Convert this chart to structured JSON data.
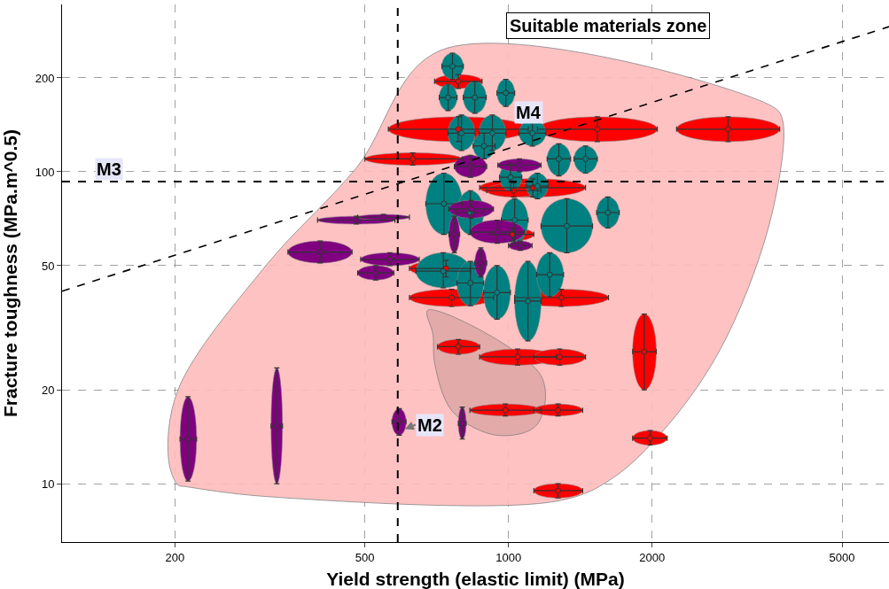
{
  "chart_data": {
    "type": "scatter",
    "xlabel": "Yield strength (elastic limit) (MPa)",
    "ylabel": "Fracture toughness (MPa.m^0.5)",
    "log": "xy",
    "xlim": [
      116,
      6270
    ],
    "ylim": [
      6.5,
      344
    ],
    "xticks": [
      200,
      500,
      1000,
      2000,
      5000
    ],
    "yticks": [
      10,
      20,
      50,
      100,
      200
    ],
    "grid": true,
    "annotations": [
      "Suitable materials zone",
      {
        "text": "M4",
        "x": 1100,
        "y": 155
      }
    ],
    "ref_lines": [
      {
        "axis": "x",
        "value": 586,
        "label": "M2",
        "color": "#000000",
        "line_style": "dashed"
      },
      {
        "axis": "y",
        "value": 93,
        "label": "M3",
        "color": "#000000",
        "line_style": "dashed"
      }
    ],
    "series": [
      {
        "type": "area",
        "color": "#ffbcbc",
        "x": [
          203,
          194,
          203,
          310,
          480,
          720,
          3570,
          3750,
          3570,
          2880,
          2240,
          1650,
          1265,
          310,
          210
        ],
        "values": [
          9.9,
          11.9,
          20,
          50,
          103,
          245,
          162,
          147,
          74,
          30,
          16.5,
          10.4,
          8.8,
          9.1,
          9.8
        ]
      },
      {
        "type": "area",
        "color": "#e0a8a8",
        "x": [
          677,
          695,
          700,
          764,
          946,
          1145,
          1172
        ],
        "values": [
          36,
          30,
          24.4,
          17,
          14.3,
          15.4,
          22.1
        ]
      },
      {
        "color": "#ff0000",
        "marker": "circle",
        "x": [
          785,
          785,
          630,
          1535,
          2885,
          1125,
          740,
          760,
          1290,
          785,
          1045,
          1280,
          985,
          1270,
          1925,
          1980,
          1270,
          1020,
          1025
        ],
        "values": [
          195,
          137,
          110,
          137,
          137,
          89,
          49,
          39.5,
          39.5,
          27.5,
          25.5,
          25.5,
          17.2,
          17.2,
          26.5,
          14,
          9.5,
          63,
          87
        ],
        "xerrors": [
          [
            700,
            880
          ],
          [
            560,
            1100
          ],
          [
            500,
            800
          ],
          [
            1150,
            2050
          ],
          [
            2250,
            3700
          ],
          [
            870,
            1450
          ],
          [
            620,
            880
          ],
          [
            620,
            930
          ],
          [
            1030,
            1620
          ],
          [
            710,
            870
          ],
          [
            870,
            1260
          ],
          [
            1130,
            1450
          ],
          [
            830,
            1170
          ],
          [
            1130,
            1430
          ],
          [
            1820,
            2040
          ],
          [
            1820,
            2150
          ],
          [
            1130,
            1430
          ],
          [
            920,
            1130
          ],
          [
            900,
            1170
          ]
        ],
        "errors": [
          [
            185,
            205
          ],
          [
            125,
            150
          ],
          [
            105,
            115
          ],
          [
            125,
            150
          ],
          [
            125,
            150
          ],
          [
            83,
            95
          ],
          [
            46,
            52
          ],
          [
            37,
            42
          ],
          [
            37,
            42
          ],
          [
            26,
            29
          ],
          [
            24,
            27
          ],
          [
            24,
            27
          ],
          [
            16.5,
            18
          ],
          [
            16.5,
            18
          ],
          [
            20,
            35
          ],
          [
            13.3,
            14.8
          ],
          [
            9,
            10
          ],
          [
            60,
            66
          ],
          [
            83,
            92
          ]
        ]
      },
      {
        "color": "#008080",
        "marker": "circle",
        "x": [
          763,
          747,
          850,
          987,
          797,
          925,
          1122,
          1275,
          1450,
          732,
          832,
          1030,
          1325,
          1615,
          730,
          832,
          946,
          1098,
          1220,
          1010,
          1150,
          889
        ],
        "values": [
          218,
          173,
          173,
          179,
          133,
          133,
          133,
          110,
          110,
          79,
          74,
          70,
          67,
          74,
          48,
          44,
          41,
          38.5,
          46.8,
          96,
          90,
          121
        ],
        "xerrors": [
          [
            725,
            804
          ],
          [
            716,
            780
          ],
          [
            804,
            898
          ],
          [
            946,
            1030
          ],
          [
            747,
            850
          ],
          [
            868,
            987
          ],
          [
            1052,
            1197
          ],
          [
            1205,
            1349
          ],
          [
            1372,
            1535
          ],
          [
            671,
            800
          ],
          [
            780,
            887
          ],
          [
            966,
            1099
          ],
          [
            1170,
            1500
          ],
          [
            1530,
            1706
          ],
          [
            640,
            832
          ],
          [
            780,
            887
          ],
          [
            887,
            1009
          ],
          [
            1030,
            1170
          ],
          [
            1145,
            1304
          ],
          [
            958,
            1066
          ],
          [
            1090,
            1210
          ],
          [
            843,
            937
          ]
        ],
        "errors": [
          [
            198,
            240
          ],
          [
            157,
            191
          ],
          [
            154,
            195
          ],
          [
            162,
            198
          ],
          [
            117,
            152
          ],
          [
            117,
            152
          ],
          [
            121,
            147
          ],
          [
            97,
            123
          ],
          [
            99,
            121
          ],
          [
            63,
            99
          ],
          [
            63,
            87
          ],
          [
            59,
            82
          ],
          [
            55,
            82
          ],
          [
            66,
            83
          ],
          [
            42.5,
            55
          ],
          [
            37.2,
            51.6
          ],
          [
            33.7,
            50
          ],
          [
            28.7,
            51.6
          ],
          [
            39.8,
            55
          ],
          [
            87,
            106
          ],
          [
            82,
            99
          ],
          [
            110,
            133
          ]
        ]
      },
      {
        "color": "#800080",
        "marker": "circle",
        "x": [
          213,
          327,
          403,
          480,
          547,
          564,
          527,
          832,
          835,
          947,
          770,
          875,
          590,
          800,
          1058,
          1054
        ],
        "values": [
          13.9,
          15.3,
          55.3,
          70,
          71.5,
          52.4,
          47.4,
          104,
          76,
          64,
          63,
          51,
          15.8,
          15.6,
          58,
          105
        ],
        "xerrors": [
          [
            205,
            222
          ],
          [
            318,
            336
          ],
          [
            345,
            470
          ],
          [
            398,
            578
          ],
          [
            483,
            620
          ],
          [
            490,
            650
          ],
          [
            483,
            575
          ],
          [
            770,
            900
          ],
          [
            750,
            930
          ],
          [
            830,
            1080
          ],
          [
            750,
            790
          ],
          [
            850,
            900
          ],
          [
            570,
            610
          ],
          [
            785,
            815
          ],
          [
            1000,
            1120
          ],
          [
            950,
            1170
          ]
        ],
        "errors": [
          [
            10.2,
            19
          ],
          [
            10,
            23.5
          ],
          [
            51,
            60
          ],
          [
            68,
            72
          ],
          [
            70,
            73
          ],
          [
            50,
            55
          ],
          [
            45,
            50
          ],
          [
            96,
            113
          ],
          [
            71,
            81
          ],
          [
            59,
            70
          ],
          [
            55,
            72
          ],
          [
            46,
            57
          ],
          [
            14.3,
            17.4
          ],
          [
            13.9,
            17.6
          ],
          [
            56,
            60
          ],
          [
            100,
            110
          ]
        ]
      },
      {
        "type": "line",
        "color": "#000000",
        "line_style": "dashed",
        "x": [
          116,
          6270
        ],
        "values": [
          41.4,
          292
        ]
      }
    ]
  }
}
